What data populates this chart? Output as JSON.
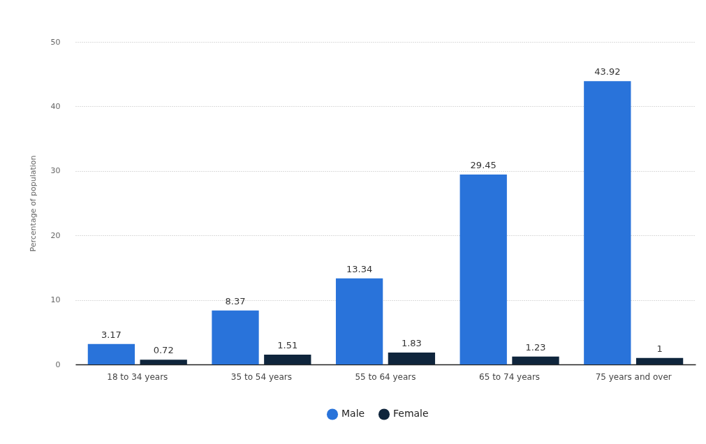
{
  "chart_data": {
    "type": "bar",
    "ylabel": "Percentage of population",
    "categories": [
      "18 to 34 years",
      "35 to 54 years",
      "55 to 64 years",
      "65 to 74 years",
      "75 years and over"
    ],
    "series": [
      {
        "name": "Male",
        "color": "#2973da",
        "values": [
          3.17,
          8.37,
          13.34,
          29.45,
          43.92
        ]
      },
      {
        "name": "Female",
        "color": "#0f253c",
        "values": [
          0.72,
          1.51,
          1.83,
          1.23,
          1
        ]
      }
    ],
    "ylim": [
      0,
      50
    ],
    "yticks": [
      0,
      10,
      20,
      30,
      40,
      50
    ],
    "grid": "y",
    "legend": "bottom",
    "data_labels": true
  }
}
